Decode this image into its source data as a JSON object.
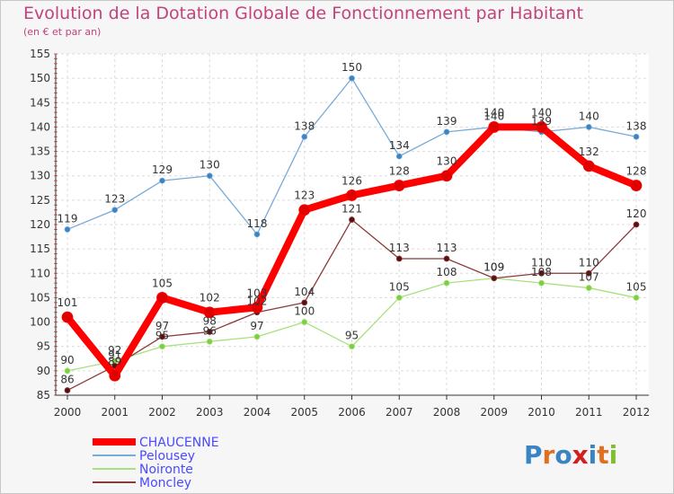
{
  "title": "Evolution de la Dotation Globale de Fonctionnement par Habitant",
  "subtitle": "(en € et par an)",
  "logo": "Proxiti",
  "chart_data": {
    "type": "line",
    "title": "Evolution de la Dotation Globale de Fonctionnement par Habitant",
    "subtitle": "(en € et par an)",
    "xlabel": "",
    "ylabel": "",
    "ylim": [
      85,
      155
    ],
    "yticks": [
      85,
      90,
      95,
      100,
      105,
      110,
      115,
      120,
      125,
      130,
      135,
      140,
      145,
      150,
      155
    ],
    "categories": [
      "2000",
      "2001",
      "2002",
      "2003",
      "2004",
      "2005",
      "2006",
      "2007",
      "2008",
      "2009",
      "2010",
      "2011",
      "2012"
    ],
    "legend_position": "bottom-left",
    "series": [
      {
        "name": "CHAUCENNE",
        "color": "#ff0000",
        "values": [
          101,
          89,
          105,
          102,
          103,
          123,
          126,
          128,
          130,
          140,
          140,
          132,
          128
        ]
      },
      {
        "name": "Pelousey",
        "color": "#7aaad6",
        "values": [
          119,
          123,
          129,
          130,
          118,
          138,
          150,
          134,
          139,
          140,
          139,
          140,
          138
        ]
      },
      {
        "name": "Noironte",
        "color": "#a8e07c",
        "values": [
          90,
          92,
          95,
          96,
          97,
          100,
          95,
          105,
          108,
          109,
          108,
          107,
          105
        ]
      },
      {
        "name": "Moncley",
        "color": "#8b3a3a",
        "values": [
          86,
          91,
          97,
          98,
          102,
          104,
          121,
          113,
          113,
          109,
          110,
          110,
          120
        ]
      }
    ]
  }
}
